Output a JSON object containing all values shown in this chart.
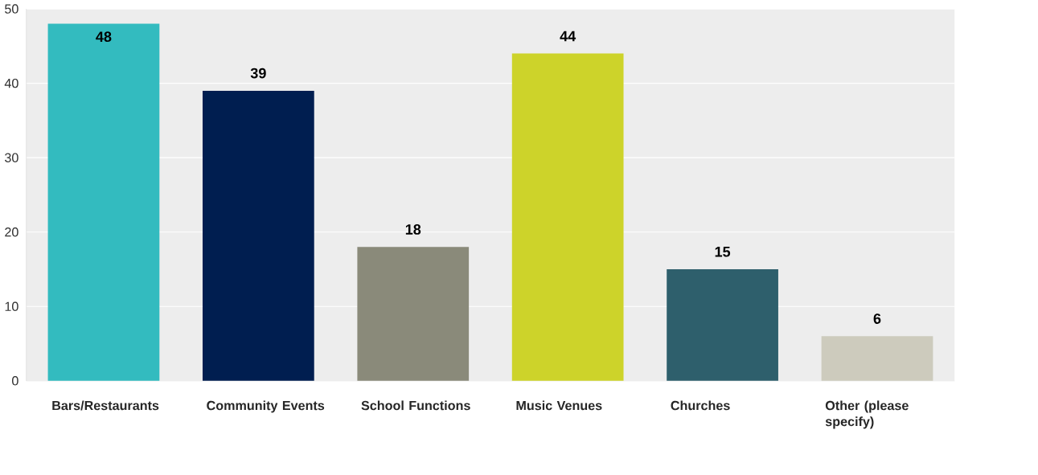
{
  "chart_data": {
    "type": "bar",
    "categories": [
      "Bars/Restaurants",
      "Community Events",
      "School Functions",
      "Music Venues",
      "Churches",
      "Other (please specify)"
    ],
    "values": [
      48,
      39,
      18,
      44,
      15,
      6
    ],
    "colors": [
      "#33bbbf",
      "#001e50",
      "#8a8a7a",
      "#cdd32a",
      "#2e5f6c",
      "#cdcbbd"
    ],
    "ylim": [
      0,
      50
    ],
    "yticks": [
      0,
      10,
      20,
      30,
      40,
      50
    ],
    "grid": "y",
    "data_labels": true
  }
}
